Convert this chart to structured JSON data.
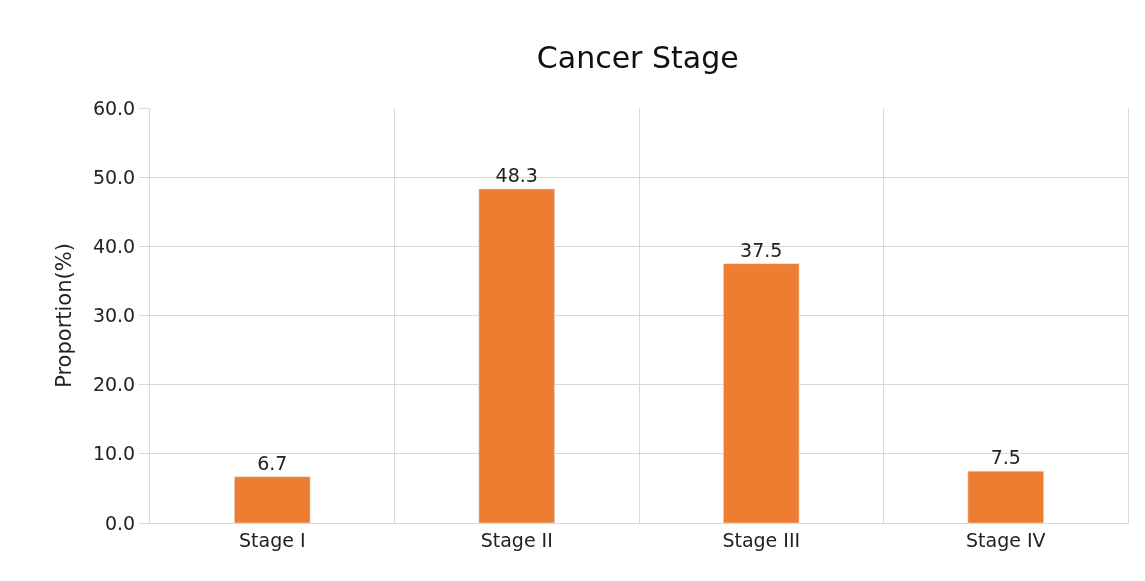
{
  "chart_data": {
    "type": "bar",
    "title": "Cancer Stage",
    "ylabel": "Proportion(%)",
    "categories": [
      "Stage I",
      "Stage II",
      "Stage III",
      "Stage IV"
    ],
    "values": [
      6.7,
      48.3,
      37.5,
      7.5
    ],
    "color": "#ed7d31",
    "ylim": [
      0,
      60
    ],
    "yticks": [
      {
        "value": 0,
        "label": "0.0"
      },
      {
        "value": 10,
        "label": "10.0"
      },
      {
        "value": 20,
        "label": "20.0"
      },
      {
        "value": 30,
        "label": "30.0"
      },
      {
        "value": 40,
        "label": "40.0"
      },
      {
        "value": 50,
        "label": "50.0"
      },
      {
        "value": 60,
        "label": "60.0"
      }
    ],
    "grid": true,
    "data_labels": true
  }
}
